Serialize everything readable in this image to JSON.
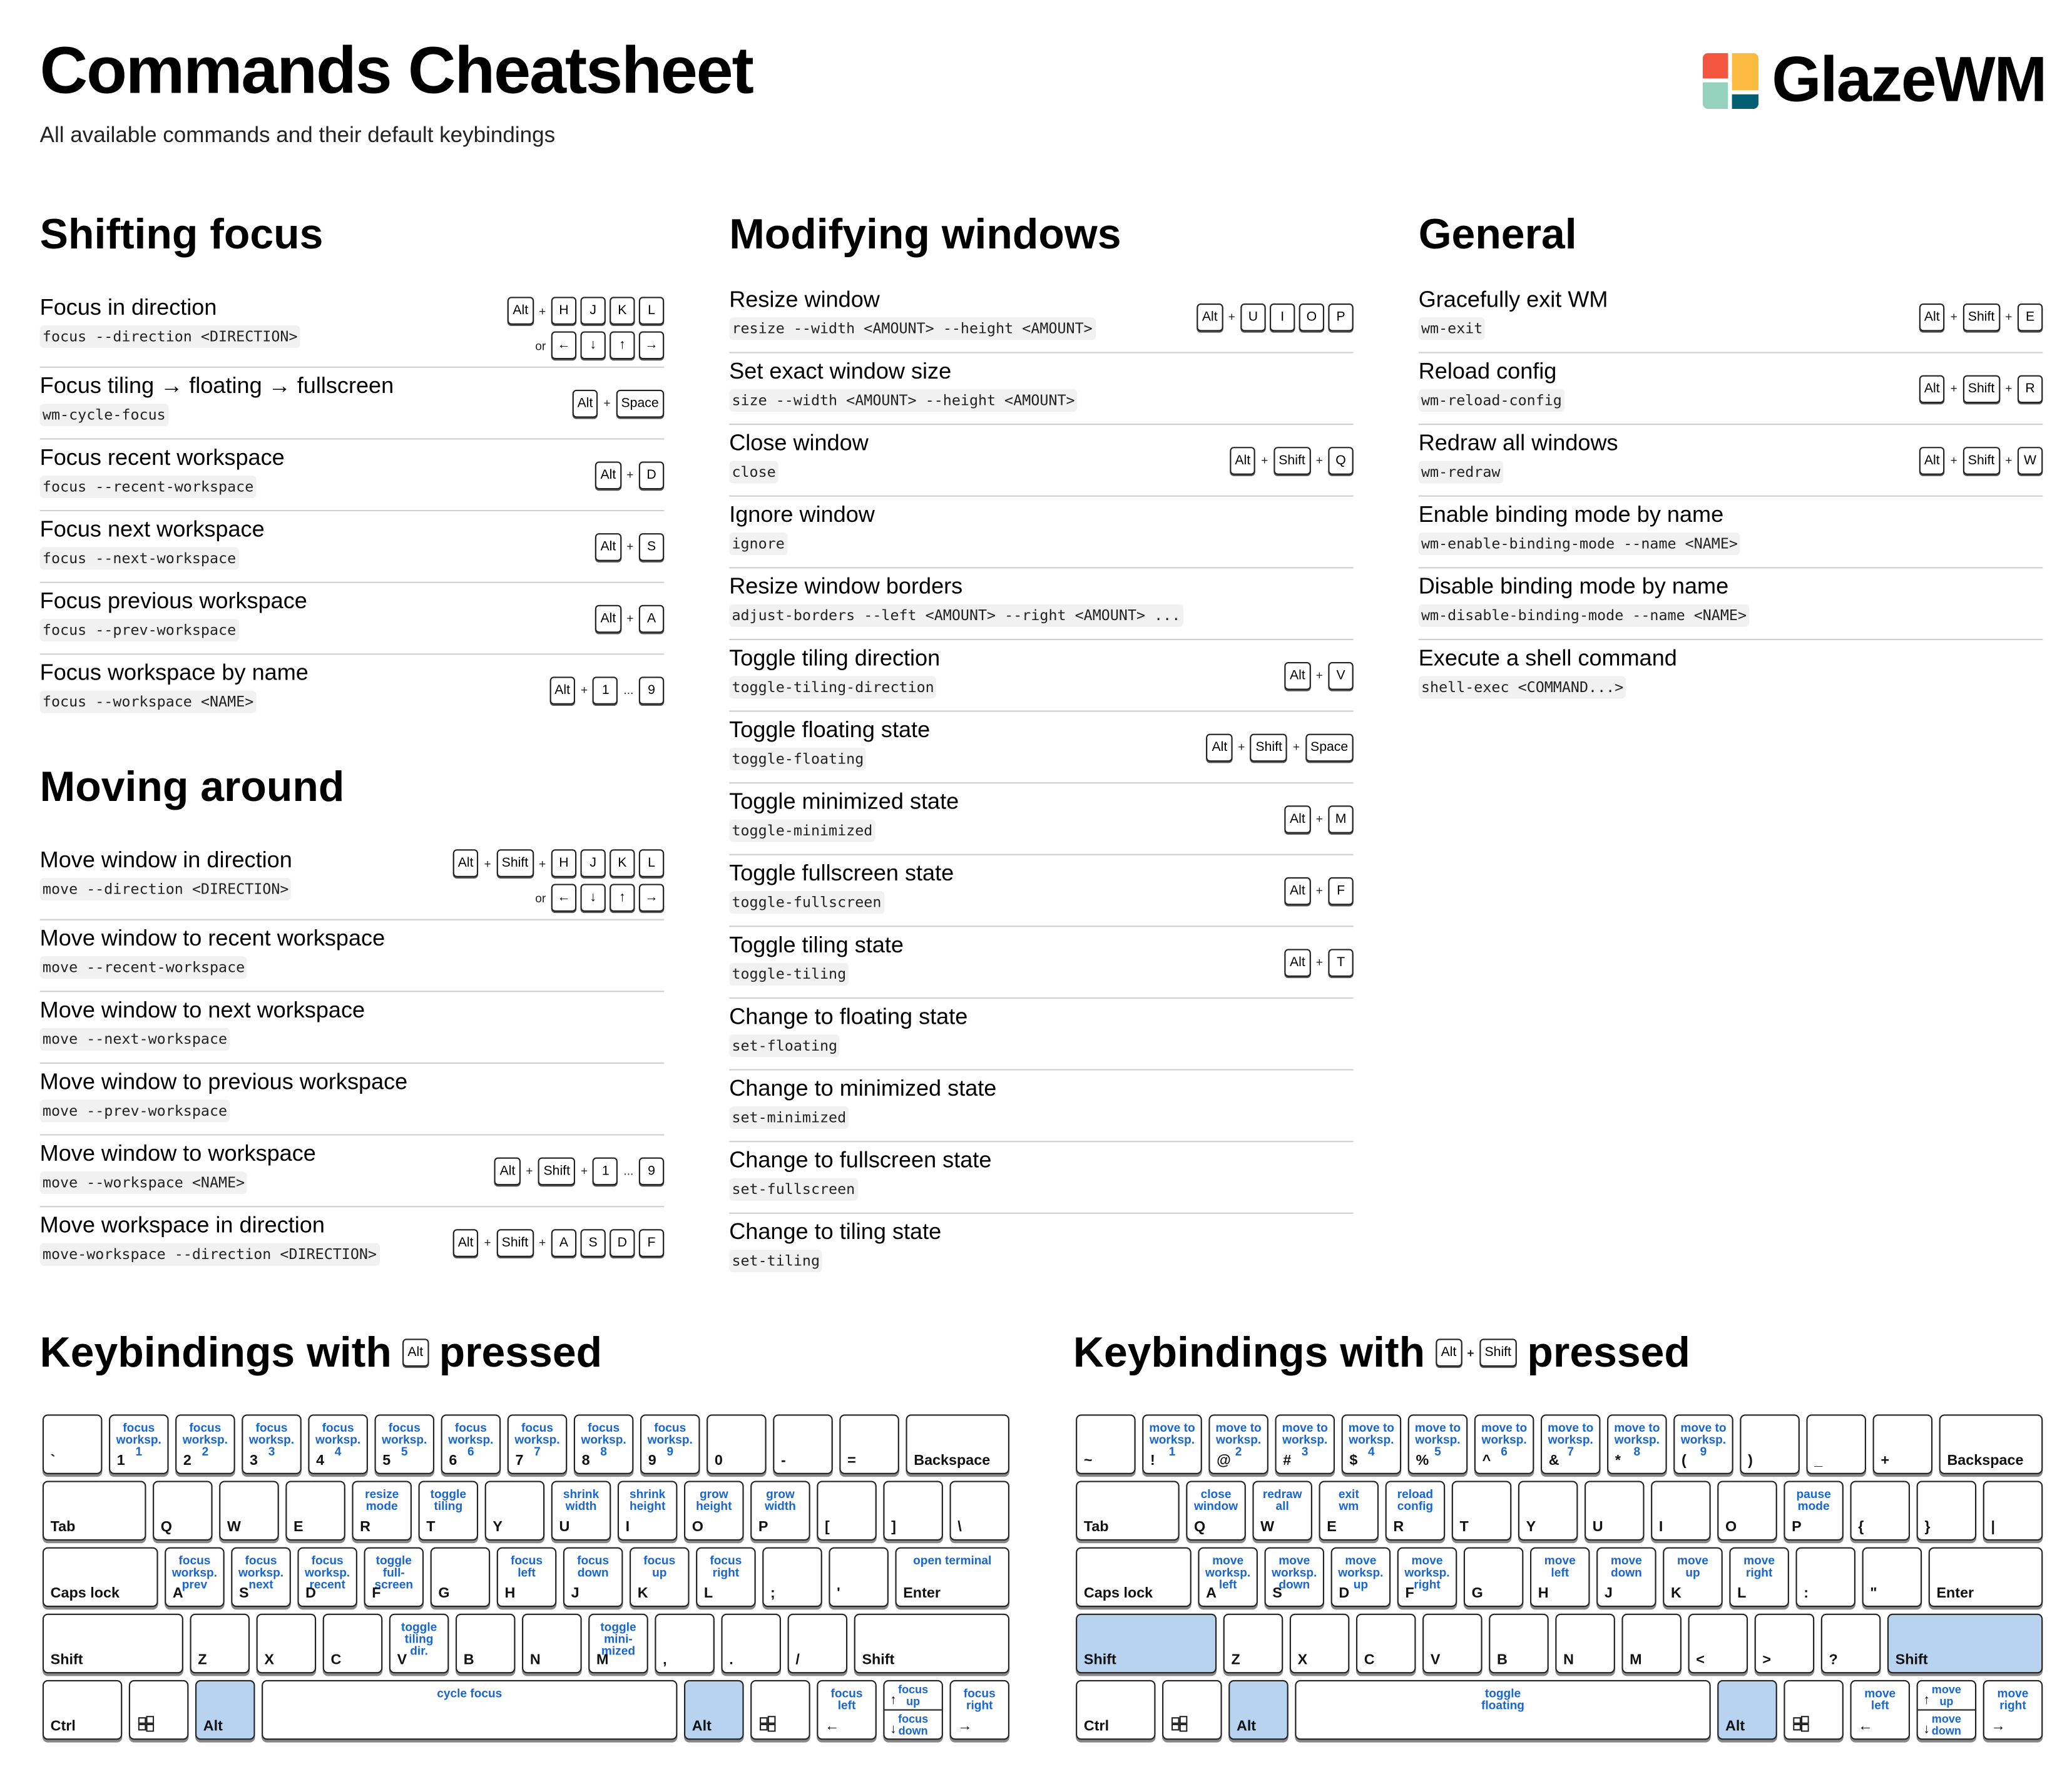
{
  "header": {
    "title": "Commands Cheatsheet",
    "subtitle": "All available commands and their default keybindings",
    "logo_text": "GlazeWM",
    "logo_colors": [
      "#f4553f",
      "#fbbb40",
      "#94d2bd",
      "#005f73"
    ]
  },
  "sections": [
    {
      "title": "Shifting focus",
      "rows": [
        {
          "name": "Focus in direction",
          "cmd": "focus --direction <DIRECTION>",
          "keys": [
            [
              "Alt",
              "+",
              "H",
              "J",
              "K",
              "L"
            ],
            [
              "or",
              "←",
              "↓",
              "↑",
              "→"
            ]
          ]
        },
        {
          "name": "Focus tiling → floating → fullscreen",
          "cmd": "wm-cycle-focus",
          "keys": [
            [
              "Alt",
              "+",
              "Space"
            ]
          ]
        },
        {
          "name": "Focus recent workspace",
          "cmd": "focus --recent-workspace",
          "keys": [
            [
              "Alt",
              "+",
              "D"
            ]
          ]
        },
        {
          "name": "Focus next workspace",
          "cmd": "focus --next-workspace",
          "keys": [
            [
              "Alt",
              "+",
              "S"
            ]
          ]
        },
        {
          "name": "Focus previous workspace",
          "cmd": "focus --prev-workspace",
          "keys": [
            [
              "Alt",
              "+",
              "A"
            ]
          ]
        },
        {
          "name": "Focus workspace by name",
          "cmd": "focus --workspace <NAME>",
          "keys": [
            [
              "Alt",
              "+",
              "1",
              "...",
              "9"
            ]
          ]
        }
      ]
    },
    {
      "title": "Moving around",
      "rows": [
        {
          "name": "Move window in direction",
          "cmd": "move --direction <DIRECTION>",
          "keys": [
            [
              "Alt",
              "+",
              "Shift",
              "+",
              "H",
              "J",
              "K",
              "L"
            ],
            [
              "or",
              "←",
              "↓",
              "↑",
              "→"
            ]
          ]
        },
        {
          "name": "Move window to recent workspace",
          "cmd": "move --recent-workspace",
          "keys": []
        },
        {
          "name": "Move window to next workspace",
          "cmd": "move --next-workspace",
          "keys": []
        },
        {
          "name": "Move window to previous workspace",
          "cmd": "move --prev-workspace",
          "keys": []
        },
        {
          "name": "Move window to workspace",
          "cmd": "move --workspace <NAME>",
          "keys": [
            [
              "Alt",
              "+",
              "Shift",
              "+",
              "1",
              "...",
              "9"
            ]
          ]
        },
        {
          "name": "Move workspace in direction",
          "cmd": "move-workspace --direction <DIRECTION>",
          "keys": [
            [
              "Alt",
              "+",
              "Shift",
              "+",
              "A",
              "S",
              "D",
              "F"
            ]
          ]
        }
      ]
    },
    {
      "title": "Modifying windows",
      "rows": [
        {
          "name": "Resize window",
          "cmd": "resize --width <AMOUNT> --height <AMOUNT>",
          "keys": [
            [
              "Alt",
              "+",
              "U",
              "I",
              "O",
              "P"
            ]
          ]
        },
        {
          "name": "Set exact window size",
          "cmd": "size --width <AMOUNT> --height <AMOUNT>",
          "keys": []
        },
        {
          "name": "Close window",
          "cmd": "close",
          "keys": [
            [
              "Alt",
              "+",
              "Shift",
              "+",
              "Q"
            ]
          ]
        },
        {
          "name": "Ignore window",
          "cmd": "ignore",
          "keys": []
        },
        {
          "name": "Resize window borders",
          "cmd": "adjust-borders --left <AMOUNT> --right <AMOUNT> ...",
          "keys": []
        },
        {
          "name": "Toggle tiling direction",
          "cmd": "toggle-tiling-direction",
          "keys": [
            [
              "Alt",
              "+",
              "V"
            ]
          ]
        },
        {
          "name": "Toggle floating state",
          "cmd": "toggle-floating",
          "keys": [
            [
              "Alt",
              "+",
              "Shift",
              "+",
              "Space"
            ]
          ]
        },
        {
          "name": "Toggle minimized state",
          "cmd": "toggle-minimized",
          "keys": [
            [
              "Alt",
              "+",
              "M"
            ]
          ]
        },
        {
          "name": "Toggle fullscreen state",
          "cmd": "toggle-fullscreen",
          "keys": [
            [
              "Alt",
              "+",
              "F"
            ]
          ]
        },
        {
          "name": "Toggle tiling state",
          "cmd": "toggle-tiling",
          "keys": [
            [
              "Alt",
              "+",
              "T"
            ]
          ]
        },
        {
          "name": "Change to floating state",
          "cmd": "set-floating",
          "keys": []
        },
        {
          "name": "Change to minimized state",
          "cmd": "set-minimized",
          "keys": []
        },
        {
          "name": "Change to fullscreen state",
          "cmd": "set-fullscreen",
          "keys": []
        },
        {
          "name": "Change to tiling state",
          "cmd": "set-tiling",
          "keys": []
        }
      ]
    },
    {
      "title": "General",
      "rows": [
        {
          "name": "Gracefully exit WM",
          "cmd": "wm-exit",
          "keys": [
            [
              "Alt",
              "+",
              "Shift",
              "+",
              "E"
            ]
          ]
        },
        {
          "name": "Reload config",
          "cmd": "wm-reload-config",
          "keys": [
            [
              "Alt",
              "+",
              "Shift",
              "+",
              "R"
            ]
          ]
        },
        {
          "name": "Redraw all windows",
          "cmd": "wm-redraw",
          "keys": [
            [
              "Alt",
              "+",
              "Shift",
              "+",
              "W"
            ]
          ]
        },
        {
          "name": "Enable binding mode by name",
          "cmd": "wm-enable-binding-mode --name <NAME>",
          "keys": []
        },
        {
          "name": "Disable binding mode by name",
          "cmd": "wm-disable-binding-mode --name <NAME>",
          "keys": []
        },
        {
          "name": "Execute a shell command",
          "cmd": "shell-exec <COMMAND...>",
          "keys": []
        }
      ]
    }
  ],
  "keyboards": [
    {
      "heading_pre": "Keybindings with",
      "heading_keys": [
        "Alt"
      ],
      "heading_post": "pressed",
      "highlight_color": "#b8d3f0",
      "action_color": "#1a66d0",
      "rows": [
        [
          {
            "label": "`"
          },
          {
            "label": "1",
            "action": "focus\nworksp.\n1"
          },
          {
            "label": "2",
            "action": "focus\nworksp.\n2"
          },
          {
            "label": "3",
            "action": "focus\nworksp.\n3"
          },
          {
            "label": "4",
            "action": "focus\nworksp.\n4"
          },
          {
            "label": "5",
            "action": "focus\nworksp.\n5"
          },
          {
            "label": "6",
            "action": "focus\nworksp.\n6"
          },
          {
            "label": "7",
            "action": "focus\nworksp.\n7"
          },
          {
            "label": "8",
            "action": "focus\nworksp.\n8"
          },
          {
            "label": "9",
            "action": "focus\nworksp.\n9"
          },
          {
            "label": "0"
          },
          {
            "label": "-"
          },
          {
            "label": "="
          },
          {
            "label": "Backspace"
          }
        ],
        [
          {
            "label": "Tab"
          },
          {
            "label": "Q"
          },
          {
            "label": "W"
          },
          {
            "label": "E"
          },
          {
            "label": "R",
            "action": "resize\nmode"
          },
          {
            "label": "T",
            "action": "toggle\ntiling"
          },
          {
            "label": "Y"
          },
          {
            "label": "U",
            "action": "shrink\nwidth"
          },
          {
            "label": "I",
            "action": "shrink\nheight"
          },
          {
            "label": "O",
            "action": "grow\nheight"
          },
          {
            "label": "P",
            "action": "grow\nwidth"
          },
          {
            "label": "["
          },
          {
            "label": "]"
          },
          {
            "label": "\\"
          }
        ],
        [
          {
            "label": "Caps lock"
          },
          {
            "label": "A",
            "action": "focus\nworksp.\nprev"
          },
          {
            "label": "S",
            "action": "focus\nworksp.\nnext"
          },
          {
            "label": "D",
            "action": "focus\nworksp.\nrecent"
          },
          {
            "label": "F",
            "action": "toggle\nfull-\nscreen"
          },
          {
            "label": "G"
          },
          {
            "label": "H",
            "action": "focus\nleft"
          },
          {
            "label": "J",
            "action": "focus\ndown"
          },
          {
            "label": "K",
            "action": "focus\nup"
          },
          {
            "label": "L",
            "action": "focus\nright"
          },
          {
            "label": ";"
          },
          {
            "label": "'"
          },
          {
            "label": "Enter",
            "action": "open terminal"
          }
        ],
        [
          {
            "label": "Shift"
          },
          {
            "label": "Z"
          },
          {
            "label": "X"
          },
          {
            "label": "C"
          },
          {
            "label": "V",
            "action": "toggle\ntiling\ndir."
          },
          {
            "label": "B"
          },
          {
            "label": "N"
          },
          {
            "label": "M",
            "action": "toggle\nmini-\nmized"
          },
          {
            "label": ","
          },
          {
            "label": "."
          },
          {
            "label": "/"
          },
          {
            "label": "Shift"
          }
        ],
        [
          {
            "label": "Ctrl"
          },
          {
            "icon": "windows-icon"
          },
          {
            "label": "Alt",
            "pressed": true
          },
          {
            "label": "",
            "action": "cycle focus"
          },
          {
            "label": "Alt",
            "pressed": true
          },
          {
            "icon": "windows-icon"
          },
          {
            "label": "←",
            "action": "focus\nleft"
          },
          {
            "split": [
              {
                "label": "↑",
                "action": "focus\nup"
              },
              {
                "label": "↓",
                "action": "focus\ndown"
              }
            ]
          },
          {
            "label": "→",
            "action": "focus\nright"
          }
        ]
      ]
    },
    {
      "heading_pre": "Keybindings with",
      "heading_keys": [
        "Alt",
        "+",
        "Shift"
      ],
      "heading_post": "pressed",
      "highlight_color": "#b8d3f0",
      "action_color": "#1a66d0",
      "rows": [
        [
          {
            "label": "~"
          },
          {
            "label": "!",
            "action": "move to\nworksp.\n1"
          },
          {
            "label": "@",
            "action": "move to\nworksp.\n2"
          },
          {
            "label": "#",
            "action": "move to\nworksp.\n3"
          },
          {
            "label": "$",
            "action": "move to\nworksp.\n4"
          },
          {
            "label": "%",
            "action": "move to\nworksp.\n5"
          },
          {
            "label": "^",
            "action": "move to\nworksp.\n6"
          },
          {
            "label": "&",
            "action": "move to\nworksp.\n7"
          },
          {
            "label": "*",
            "action": "move to\nworksp.\n8"
          },
          {
            "label": "(",
            "action": "move to\nworksp.\n9"
          },
          {
            "label": ")"
          },
          {
            "label": "_"
          },
          {
            "label": "+"
          },
          {
            "label": "Backspace"
          }
        ],
        [
          {
            "label": "Tab"
          },
          {
            "label": "Q",
            "action": "close\nwindow"
          },
          {
            "label": "W",
            "action": "redraw\nall"
          },
          {
            "label": "E",
            "action": "exit\nwm"
          },
          {
            "label": "R",
            "action": "reload\nconfig"
          },
          {
            "label": "T"
          },
          {
            "label": "Y"
          },
          {
            "label": "U"
          },
          {
            "label": "I"
          },
          {
            "label": "O"
          },
          {
            "label": "P",
            "action": "pause\nmode"
          },
          {
            "label": "{"
          },
          {
            "label": "}"
          },
          {
            "label": "|"
          }
        ],
        [
          {
            "label": "Caps lock"
          },
          {
            "label": "A",
            "action": "move\nworksp.\nleft"
          },
          {
            "label": "S",
            "action": "move\nworksp.\ndown"
          },
          {
            "label": "D",
            "action": "move\nworksp.\nup"
          },
          {
            "label": "F",
            "action": "move\nworksp.\nright"
          },
          {
            "label": "G"
          },
          {
            "label": "H",
            "action": "move\nleft"
          },
          {
            "label": "J",
            "action": "move\ndown"
          },
          {
            "label": "K",
            "action": "move\nup"
          },
          {
            "label": "L",
            "action": "move\nright"
          },
          {
            "label": ":"
          },
          {
            "label": "\""
          },
          {
            "label": "Enter"
          }
        ],
        [
          {
            "label": "Shift",
            "pressed": true
          },
          {
            "label": "Z"
          },
          {
            "label": "X"
          },
          {
            "label": "C"
          },
          {
            "label": "V"
          },
          {
            "label": "B"
          },
          {
            "label": "N"
          },
          {
            "label": "M"
          },
          {
            "label": "<"
          },
          {
            "label": ">"
          },
          {
            "label": "?"
          },
          {
            "label": "Shift",
            "pressed": true
          }
        ],
        [
          {
            "label": "Ctrl"
          },
          {
            "icon": "windows-icon"
          },
          {
            "label": "Alt",
            "pressed": true
          },
          {
            "label": "",
            "action": "toggle\nfloating"
          },
          {
            "label": "Alt",
            "pressed": true
          },
          {
            "icon": "windows-icon"
          },
          {
            "label": "←",
            "action": "move\nleft"
          },
          {
            "split": [
              {
                "label": "↑",
                "action": "move\nup"
              },
              {
                "label": "↓",
                "action": "move\ndown"
              }
            ]
          },
          {
            "label": "→",
            "action": "move\nright"
          }
        ]
      ]
    }
  ]
}
